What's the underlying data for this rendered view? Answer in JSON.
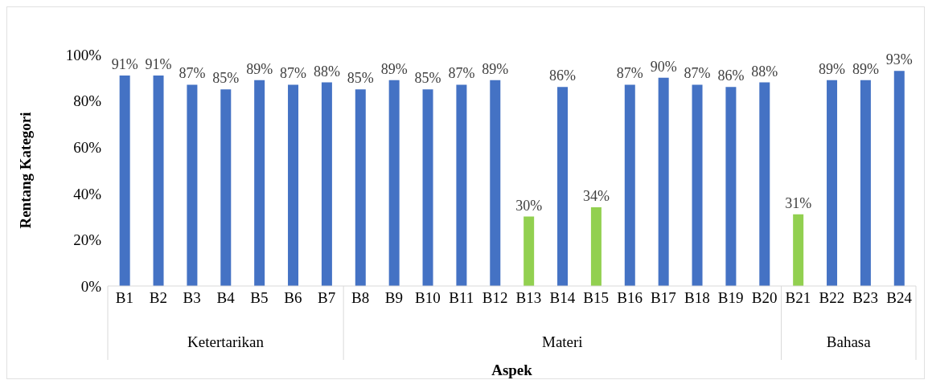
{
  "chart_data": {
    "type": "bar",
    "xlabel": "Aspek",
    "ylabel": "Rentang  Kategori",
    "categories": [
      "B1",
      "B2",
      "B3",
      "B4",
      "B5",
      "B6",
      "B7",
      "B8",
      "B9",
      "B10",
      "B11",
      "B12",
      "B13",
      "B14",
      "B15",
      "B16",
      "B17",
      "B18",
      "B19",
      "B20",
      "B21",
      "B22",
      "B23",
      "B24"
    ],
    "values": [
      91,
      91,
      87,
      85,
      89,
      87,
      88,
      85,
      89,
      85,
      87,
      89,
      30,
      86,
      34,
      87,
      90,
      87,
      86,
      88,
      31,
      89,
      89,
      93
    ],
    "colors": [
      "#4472c4",
      "#4472c4",
      "#4472c4",
      "#4472c4",
      "#4472c4",
      "#4472c4",
      "#4472c4",
      "#4472c4",
      "#4472c4",
      "#4472c4",
      "#4472c4",
      "#4472c4",
      "#92d050",
      "#4472c4",
      "#92d050",
      "#4472c4",
      "#4472c4",
      "#4472c4",
      "#4472c4",
      "#4472c4",
      "#92d050",
      "#4472c4",
      "#4472c4",
      "#4472c4"
    ],
    "value_labels": [
      "91%",
      "91%",
      "87%",
      "85%",
      "89%",
      "87%",
      "88%",
      "85%",
      "89%",
      "85%",
      "87%",
      "89%",
      "30%",
      "86%",
      "34%",
      "87%",
      "90%",
      "87%",
      "86%",
      "88%",
      "31%",
      "89%",
      "89%",
      "93%"
    ],
    "annotations": [
      "Ketertarikan",
      "Materi",
      "Bahasa"
    ],
    "ylim": [
      0,
      100
    ],
    "yticks": [
      {
        "value": 0,
        "label": "0%"
      },
      {
        "value": 20,
        "label": "20%"
      },
      {
        "value": 40,
        "label": "40%"
      },
      {
        "value": 60,
        "label": "60%"
      },
      {
        "value": 80,
        "label": "80%"
      },
      {
        "value": 100,
        "label": "100%"
      }
    ],
    "grid": false,
    "legend": false
  }
}
